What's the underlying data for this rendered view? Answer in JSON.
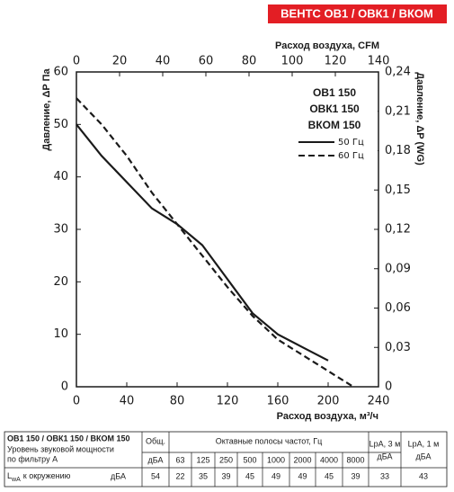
{
  "header": {
    "title": "ВЕНТС ОВ1 / ОВК1 / ВКОМ"
  },
  "chart_data": {
    "type": "line",
    "x_label": "Расход воздуха, м³/ч",
    "x2_label": "Расход воздуха, CFM",
    "y_label": "Давление, ΔP Па",
    "y2_label": "Давление, ΔP (WG)",
    "legend_title": [
      "ОВ1 150",
      "ОВК1 150",
      "ВКОМ 150"
    ],
    "x": [
      0,
      20,
      40,
      60,
      80,
      100,
      120,
      140,
      160,
      180,
      200,
      220
    ],
    "series": [
      {
        "name": "50 Гц",
        "color": "#1a1a1a",
        "dash": "solid",
        "values": [
          50,
          44,
          39,
          34,
          31,
          27,
          20.5,
          14,
          10,
          7.5,
          5,
          null
        ]
      },
      {
        "name": "60 Гц",
        "color": "#1a1a1a",
        "dash": "dashed",
        "values": [
          55,
          50,
          44,
          37,
          31,
          25,
          19,
          13.5,
          9,
          6,
          3,
          0
        ]
      }
    ],
    "xlim": [
      0,
      240
    ],
    "xticks": [
      0,
      40,
      80,
      120,
      160,
      200,
      240
    ],
    "x2lim": [
      0,
      140
    ],
    "x2ticks": [
      0,
      20,
      40,
      60,
      80,
      100,
      120,
      140
    ],
    "ylim": [
      0,
      60
    ],
    "yticks": [
      0,
      10,
      20,
      30,
      40,
      50,
      60
    ],
    "y2lim": [
      0,
      0.24
    ],
    "y2ticks": [
      0,
      {
        "value": 0.03,
        "label": "0,03"
      },
      {
        "value": 0.06,
        "label": "0,06"
      },
      {
        "value": 0.09,
        "label": "0,09"
      },
      {
        "value": 0.12,
        "label": "0,12"
      },
      {
        "value": 0.15,
        "label": "0,15"
      },
      {
        "value": 0.18,
        "label": "0,18"
      },
      {
        "value": 0.21,
        "label": "0,21"
      },
      {
        "value": 0.24,
        "label": "0,24"
      }
    ],
    "grid": false
  },
  "table": {
    "title": "ОВ1 150 / ОВК1 150 / ВКОМ 150",
    "description": [
      "Уровень звуковой мощности",
      "по фильтру А"
    ],
    "row_label": {
      "main": "L",
      "sub": "wA",
      "rest": "к окружению",
      "unit": "дБА"
    },
    "columns": {
      "total": "Общ.",
      "total_unit": "дБА",
      "octave": "Октавные полосы частот, Гц",
      "frequencies": [
        63,
        125,
        250,
        500,
        1000,
        2000,
        4000,
        8000
      ],
      "lpa3": [
        "LpA, 3 м",
        "дБА"
      ],
      "lpa1": [
        "LpA, 1 м",
        "дБА"
      ]
    },
    "values": [
      54,
      22,
      35,
      39,
      45,
      49,
      49,
      45,
      39,
      33,
      43
    ]
  }
}
